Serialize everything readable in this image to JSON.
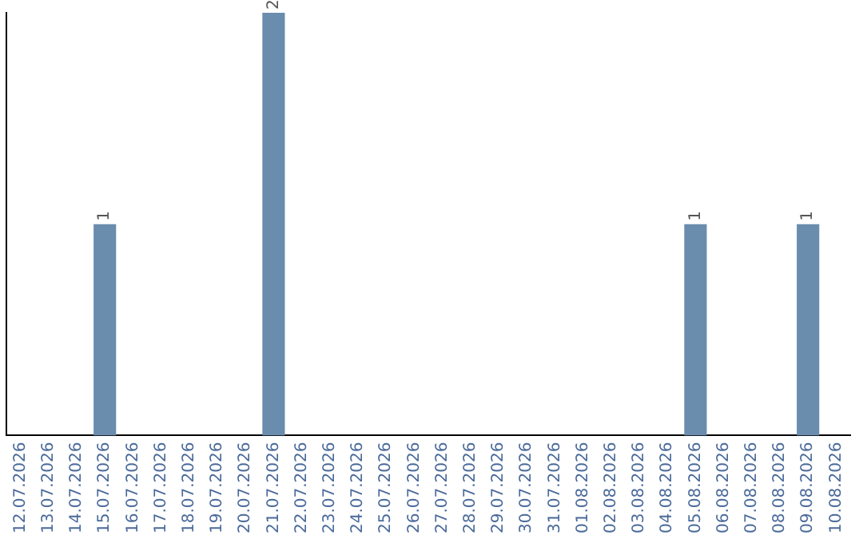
{
  "chart_data": {
    "type": "bar",
    "categories": [
      "12.07.2026",
      "13.07.2026",
      "14.07.2026",
      "15.07.2026",
      "16.07.2026",
      "17.07.2026",
      "18.07.2026",
      "19.07.2026",
      "20.07.2026",
      "21.07.2026",
      "22.07.2026",
      "23.07.2026",
      "24.07.2026",
      "25.07.2026",
      "26.07.2026",
      "27.07.2026",
      "28.07.2026",
      "29.07.2026",
      "30.07.2026",
      "31.07.2026",
      "01.08.2026",
      "02.08.2026",
      "03.08.2026",
      "04.08.2026",
      "05.08.2026",
      "06.08.2026",
      "07.08.2026",
      "08.08.2026",
      "09.08.2026",
      "10.08.2026"
    ],
    "values": [
      0,
      0,
      0,
      1,
      0,
      0,
      0,
      0,
      0,
      2,
      0,
      0,
      0,
      0,
      0,
      0,
      0,
      0,
      0,
      0,
      0,
      0,
      0,
      0,
      1,
      0,
      0,
      0,
      1,
      0
    ],
    "color": "#6a8cad",
    "ylim": [
      0,
      2
    ],
    "tick_labels": "x",
    "value_labels": [
      null,
      null,
      null,
      "1",
      null,
      null,
      null,
      null,
      null,
      "2",
      null,
      null,
      null,
      null,
      null,
      null,
      null,
      null,
      null,
      null,
      null,
      null,
      null,
      null,
      "1",
      null,
      null,
      null,
      "1",
      null
    ]
  }
}
